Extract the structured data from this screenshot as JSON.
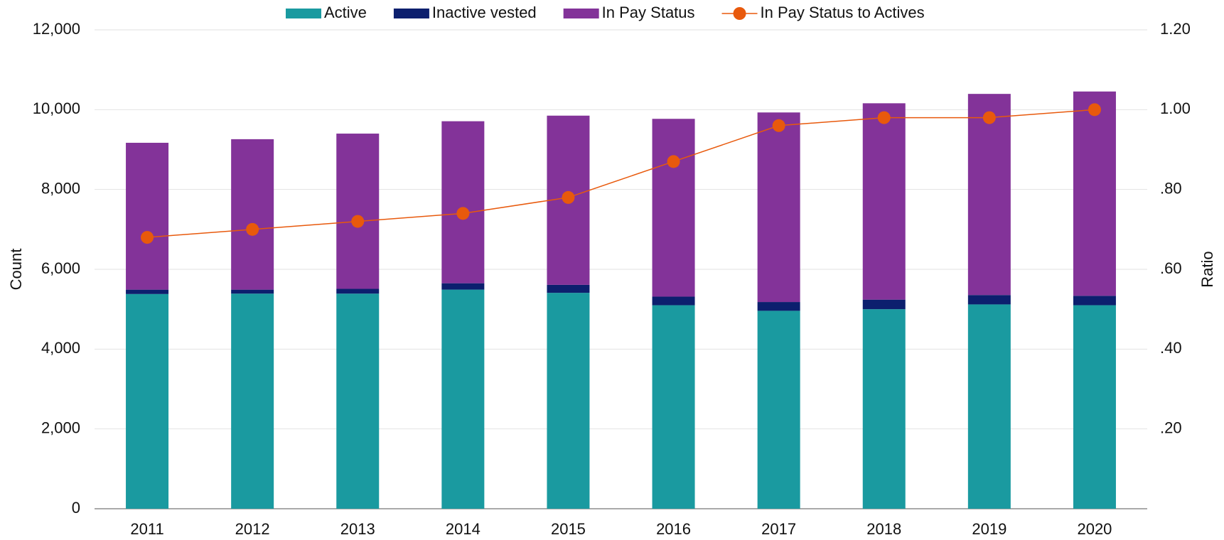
{
  "chart_data": {
    "type": "bar",
    "stacked": true,
    "ylabel": "Count",
    "y2label": "Ratio",
    "categories": [
      "2011",
      "2012",
      "2013",
      "2014",
      "2015",
      "2016",
      "2017",
      "2018",
      "2019",
      "2020"
    ],
    "series": [
      {
        "name": "Active",
        "color": "#1a9aa0",
        "values": [
          5380,
          5390,
          5390,
          5490,
          5410,
          5100,
          4960,
          5000,
          5120,
          5100
        ]
      },
      {
        "name": "Inactive vested",
        "color": "#0c1f6e",
        "values": [
          110,
          100,
          120,
          160,
          200,
          215,
          220,
          240,
          235,
          235
        ]
      },
      {
        "name": "In Pay Status",
        "color": "#833399",
        "values": [
          3680,
          3770,
          3890,
          4060,
          4240,
          4455,
          4750,
          4920,
          5040,
          5120
        ]
      },
      {
        "name": "In Pay Status to Actives",
        "type": "line",
        "axis": "y2",
        "color": "#e8590c",
        "values": [
          0.68,
          0.7,
          0.72,
          0.74,
          0.78,
          0.87,
          0.96,
          0.98,
          0.98,
          1.0
        ]
      }
    ],
    "ylim": [
      0,
      12000
    ],
    "yticks": [
      0,
      {
        "value": 2000,
        "label": "2,000"
      },
      {
        "value": 4000,
        "label": "4,000"
      },
      {
        "value": 6000,
        "label": "6,000"
      },
      {
        "value": 8000,
        "label": "8,000"
      },
      {
        "value": 10000,
        "label": "10,000"
      },
      {
        "value": 12000,
        "label": "12,000"
      }
    ],
    "y2lim": [
      0,
      1.2
    ],
    "y2ticks": [
      {
        "value": 0.2,
        "label": ".20"
      },
      {
        "value": 0.4,
        "label": ".40"
      },
      {
        "value": 0.6,
        "label": ".60"
      },
      {
        "value": 0.8,
        "label": ".80"
      },
      {
        "value": 1.0,
        "label": "1.00"
      },
      {
        "value": 1.2,
        "label": "1.20"
      }
    ],
    "grid": true,
    "legend": "top"
  }
}
